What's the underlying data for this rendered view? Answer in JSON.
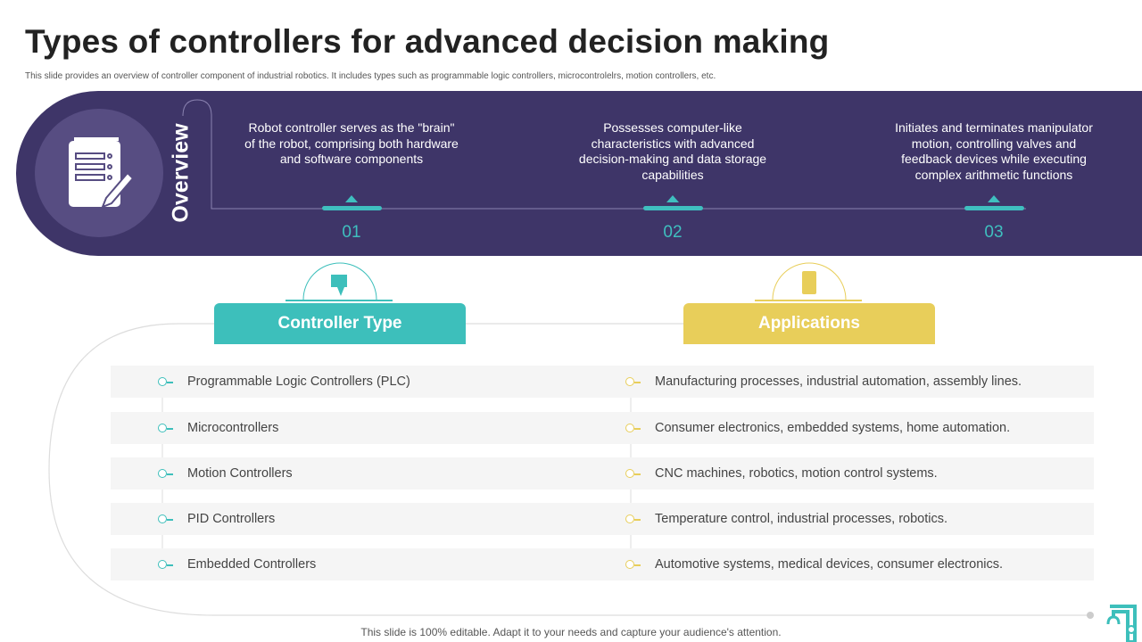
{
  "title": "Types of controllers for advanced decision making",
  "subtitle": "This slide provides an overview of controller component of industrial robotics. It includes types such as programmable logic controllers, microcontrolelrs, motion controllers, etc.",
  "overview": {
    "label": "Overview",
    "icon": "document-edit-icon",
    "points": [
      {
        "text": "Robot controller serves as the \"brain\" of the robot, comprising both hardware and software components",
        "number": "01"
      },
      {
        "text": "Possesses computer-like characteristics with advanced decision-making and data storage capabilities",
        "number": "02"
      },
      {
        "text": "Initiates and terminates manipulator motion, controlling valves and feedback devices while executing complex arithmetic functions",
        "number": "03"
      }
    ]
  },
  "columns": {
    "left": {
      "header": "Controller Type",
      "color": "#3dbfbb"
    },
    "right": {
      "header": "Applications",
      "color": "#e8ce5a"
    }
  },
  "rows": [
    {
      "type": "Programmable Logic Controllers (PLC)",
      "application": "Manufacturing processes, industrial automation, assembly lines."
    },
    {
      "type": "Microcontrollers",
      "application": "Consumer electronics, embedded systems, home automation."
    },
    {
      "type": "Motion Controllers",
      "application": "CNC machines, robotics, motion control systems."
    },
    {
      "type": "PID Controllers",
      "application": "Temperature control, industrial processes, robotics."
    },
    {
      "type": "Embedded Controllers",
      "application": "Automotive systems, medical devices, consumer electronics."
    }
  ],
  "footer": "This slide is 100% editable. Adapt it to your needs and capture your audience's attention.",
  "colors": {
    "band": "#3e3568",
    "teal": "#3dbfbb",
    "yellow": "#e8ce5a"
  }
}
